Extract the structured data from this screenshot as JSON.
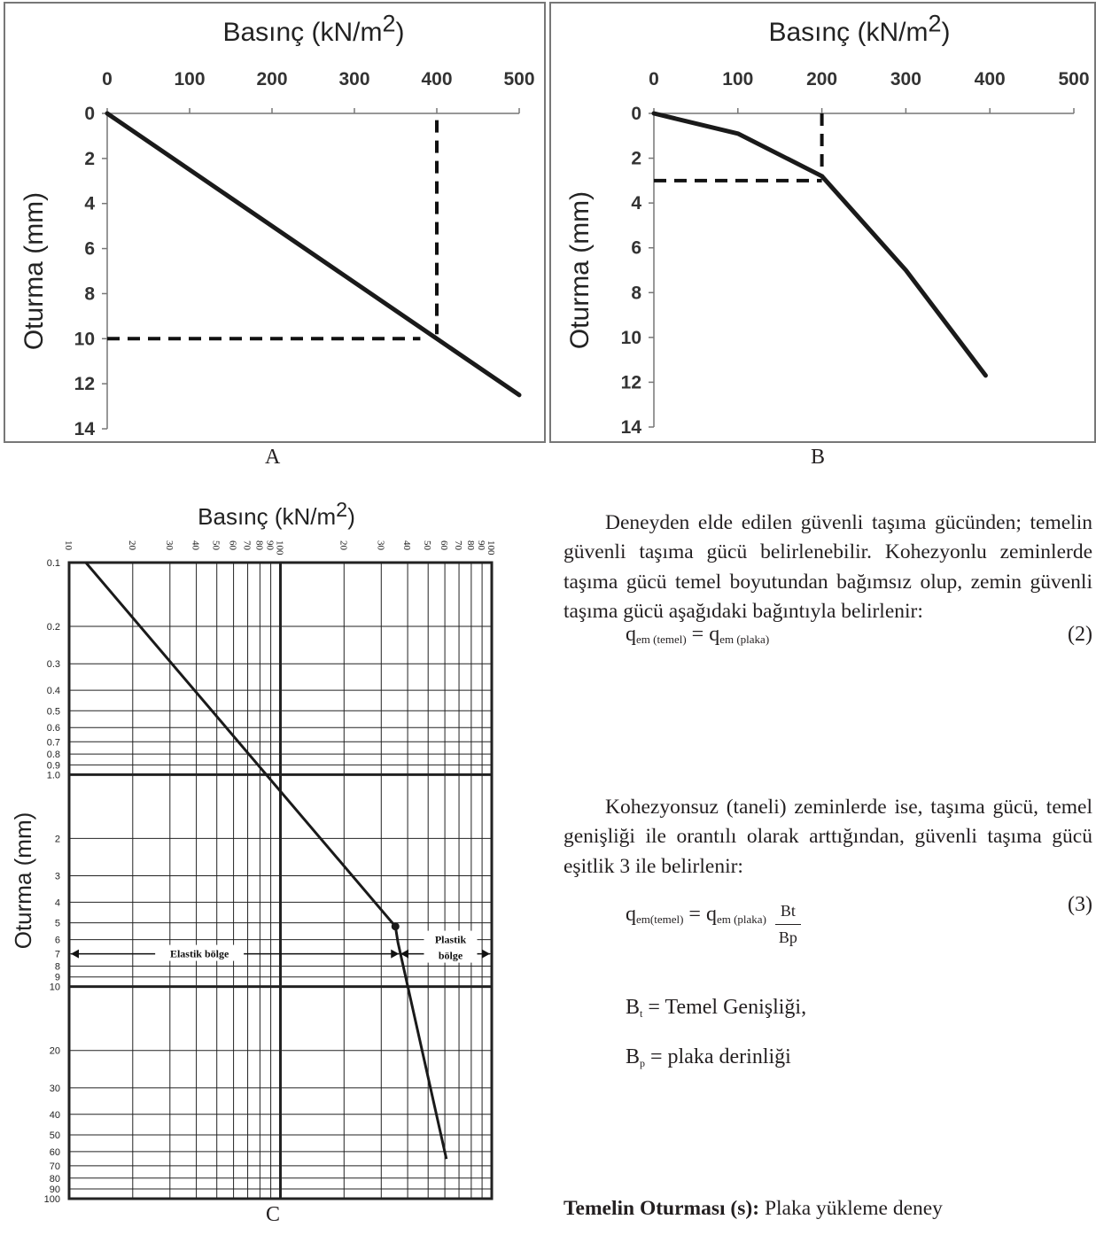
{
  "chart_data": [
    {
      "type": "line",
      "title": "Basınç (kN/m2)",
      "title_base": "Basınç (kN/m",
      "title_sup": "2",
      "title_end": ")",
      "ylabel": "Oturma (mm)",
      "caption": "A",
      "xlim": [
        0,
        500
      ],
      "ylim": [
        14,
        0
      ],
      "x_ticks": [
        "0",
        "100",
        "200",
        "300",
        "400",
        "500"
      ],
      "y_ticks": [
        "0",
        "2",
        "4",
        "6",
        "8",
        "10",
        "12",
        "14"
      ],
      "series": [
        {
          "x": [
            0,
            500
          ],
          "y": [
            0,
            12.5
          ]
        }
      ],
      "guides": [
        {
          "x": [
            400,
            400
          ],
          "y": [
            0.3,
            9.8
          ]
        },
        {
          "x": [
            0,
            380
          ],
          "y": [
            10,
            10
          ]
        }
      ],
      "grid": false
    },
    {
      "type": "line",
      "title": "Basınç (kN/m2)",
      "title_base": "Basınç (kN/m",
      "title_sup": "2",
      "title_end": ")",
      "ylabel": "Oturma (mm)",
      "caption": "B",
      "xlim": [
        0,
        500
      ],
      "ylim": [
        14,
        0
      ],
      "x_ticks": [
        "0",
        "100",
        "200",
        "300",
        "400",
        "500"
      ],
      "y_ticks": [
        "0",
        "2",
        "4",
        "6",
        "8",
        "10",
        "12",
        "14"
      ],
      "series": [
        {
          "x": [
            0,
            100,
            200,
            300,
            395
          ],
          "y": [
            0,
            0.9,
            2.8,
            7.0,
            11.7
          ]
        }
      ],
      "guides": [
        {
          "x": [
            200,
            200
          ],
          "y": [
            0,
            2.8
          ]
        },
        {
          "x": [
            0,
            200
          ],
          "y": [
            3,
            3
          ]
        }
      ],
      "grid": false
    },
    {
      "type": "line",
      "title": "Basınç (kN/m2)",
      "title_base": "Basınç (kN/m",
      "title_sup": "2",
      "title_end": ")",
      "ylabel": "Oturma (mm)",
      "caption": "C",
      "x_scale": "log",
      "y_scale": "log",
      "xlim": [
        10,
        1000
      ],
      "ylim": [
        0.1,
        100
      ],
      "x_ticks": [
        "10",
        "20",
        "30",
        "40",
        "50",
        "60",
        "70",
        "80",
        "90",
        "100",
        "20",
        "30",
        "40",
        "50",
        "60",
        "70",
        "80",
        "90",
        "100"
      ],
      "y_ticks": [
        "0.1",
        "0.2",
        "0.3",
        "0.4",
        "0.5",
        "0.6",
        "0.7",
        "0.8",
        "0.9",
        "1.0",
        "2",
        "3",
        "4",
        "5",
        "6",
        "7",
        "8",
        "9",
        "10",
        "20",
        "30",
        "40",
        "50",
        "60",
        "70",
        "80",
        "90",
        "100"
      ],
      "series": [
        {
          "x": [
            12,
            350,
            360,
            610
          ],
          "y": [
            0.1,
            5.2,
            6.2,
            65
          ]
        }
      ],
      "marker": {
        "x": 350,
        "y": 5.2
      },
      "regions": [
        {
          "label": "Elastik bölge",
          "x": [
            10,
            350
          ]
        },
        {
          "label": "Plastik",
          "label2": "bölge",
          "x": [
            370,
            1000
          ]
        }
      ],
      "region_y": 7,
      "grid": true
    }
  ],
  "text": {
    "para1": "Deneyden elde edilen güvenli taşıma gücünden; temelin güvenli taşıma gücü belirlenebilir. Kohezyonlu zeminlerde taşıma gücü temel boyutundan bağımsız olup, zemin güvenli taşıma gücü aşağıdaki bağıntıyla belirlenir:",
    "eq2_q": "q",
    "eq2_sub1": "em (temel)",
    "eq2_eq": " = q",
    "eq2_sub2": "em (plaka)",
    "eq2_num": "(2)",
    "para2": "Kohezyonsuz (taneli) zeminlerde ise, taşıma gücü, temel genişliği ile orantılı olarak arttığından, güvenli taşıma gücü eşitlik 3 ile belirlenir:",
    "eq3_q": "q",
    "eq3_sub1": "em(temel)",
    "eq3_eq": " = q",
    "eq3_sub2": "em (plaka)",
    "eq3_frac_top": "Bt",
    "eq3_frac_bot": "Bp",
    "eq3_num": "(3)",
    "def1_b": "B",
    "def1_sub": "t",
    "def1_rest": " = Temel Genişliği,",
    "def2_b": "B",
    "def2_sub": "p",
    "def2_rest": " = plaka derinliği",
    "para4_bold": "Temelin Oturması (s):",
    "para4_rest": " Plaka yükleme deney"
  }
}
